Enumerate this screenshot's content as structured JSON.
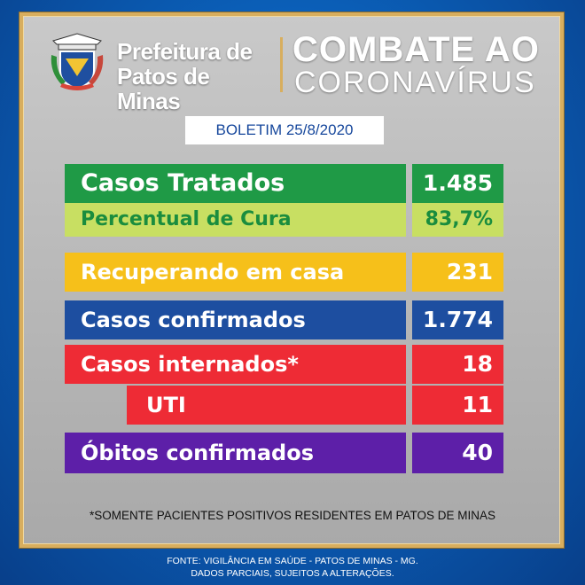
{
  "header": {
    "org_line1": "Prefeitura de",
    "org_line2": "Patos de Minas",
    "campaign_line1": "COMBATE AO",
    "campaign_line2": "CORONAVÍRUS"
  },
  "bulletin": "BOLETIM 25/8/2020",
  "stats": {
    "treated": {
      "label": "Casos Tratados",
      "value": "1.485",
      "color": "#1f9a46"
    },
    "cure_rate": {
      "label": "Percentual de Cura",
      "value": "83,7%",
      "color": "#c8df62",
      "text_color": "#1a8d3e"
    },
    "recovering_home": {
      "label": "Recuperando em casa",
      "value": "231",
      "color": "#f6c01a"
    },
    "confirmed": {
      "label": "Casos confirmados",
      "value": "1.774",
      "color": "#1d4ea0"
    },
    "hospitalized": {
      "label": "Casos internados*",
      "value": "18",
      "color": "#ee2b35"
    },
    "icu": {
      "label": "UTI",
      "value": "11",
      "color": "#ee2b35"
    },
    "deaths": {
      "label": "Óbitos confirmados",
      "value": "40",
      "color": "#5d1fa8"
    }
  },
  "footnote": "*SOMENTE PACIENTES POSITIVOS RESIDENTES EM PATOS DE MINAS",
  "source": {
    "line1": "FONTE: VIGILÂNCIA EM SAÚDE - PATOS DE MINAS - MG.",
    "line2": "DADOS PARCIAIS, SUJEITOS A ALTERAÇÕES."
  },
  "icons": {
    "crest": "coat-of-arms-icon"
  }
}
